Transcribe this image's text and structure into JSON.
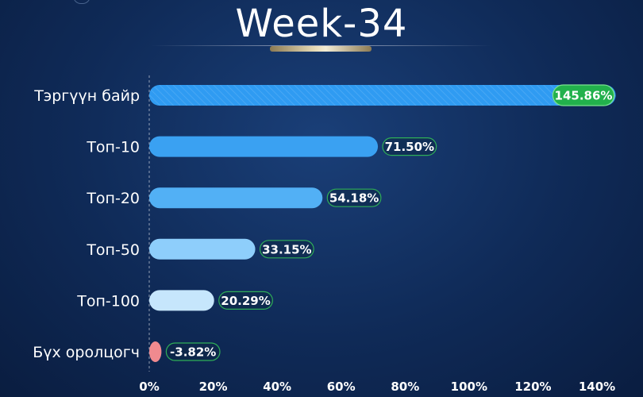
{
  "chart_data": {
    "type": "bar",
    "orientation": "horizontal",
    "title": "Week-34",
    "categories": [
      "Тэргүүн байр",
      "Топ-10",
      "Топ-20",
      "Топ-50",
      "Топ-100",
      "Бүх оролцогч"
    ],
    "values": [
      145.86,
      71.5,
      54.18,
      33.15,
      20.29,
      -3.82
    ],
    "value_labels": [
      "145.86%",
      "71.50%",
      "54.18%",
      "33.15%",
      "20.29%",
      "-3.82%"
    ],
    "bar_colors": [
      "#2f9bf2",
      "#3aa1f2",
      "#52b0f5",
      "#8ecefb",
      "#c6e6fc",
      "#f08a8f"
    ],
    "xlim": [
      0,
      140
    ],
    "xticks": [
      0,
      20,
      40,
      60,
      80,
      100,
      120,
      140
    ],
    "xtick_labels": [
      "0%",
      "20%",
      "40%",
      "60%",
      "80%",
      "100%",
      "120%",
      "140%"
    ],
    "xlabel": "",
    "ylabel": "",
    "grid": false,
    "legend": "none",
    "highlight_color": "#22b14c"
  }
}
